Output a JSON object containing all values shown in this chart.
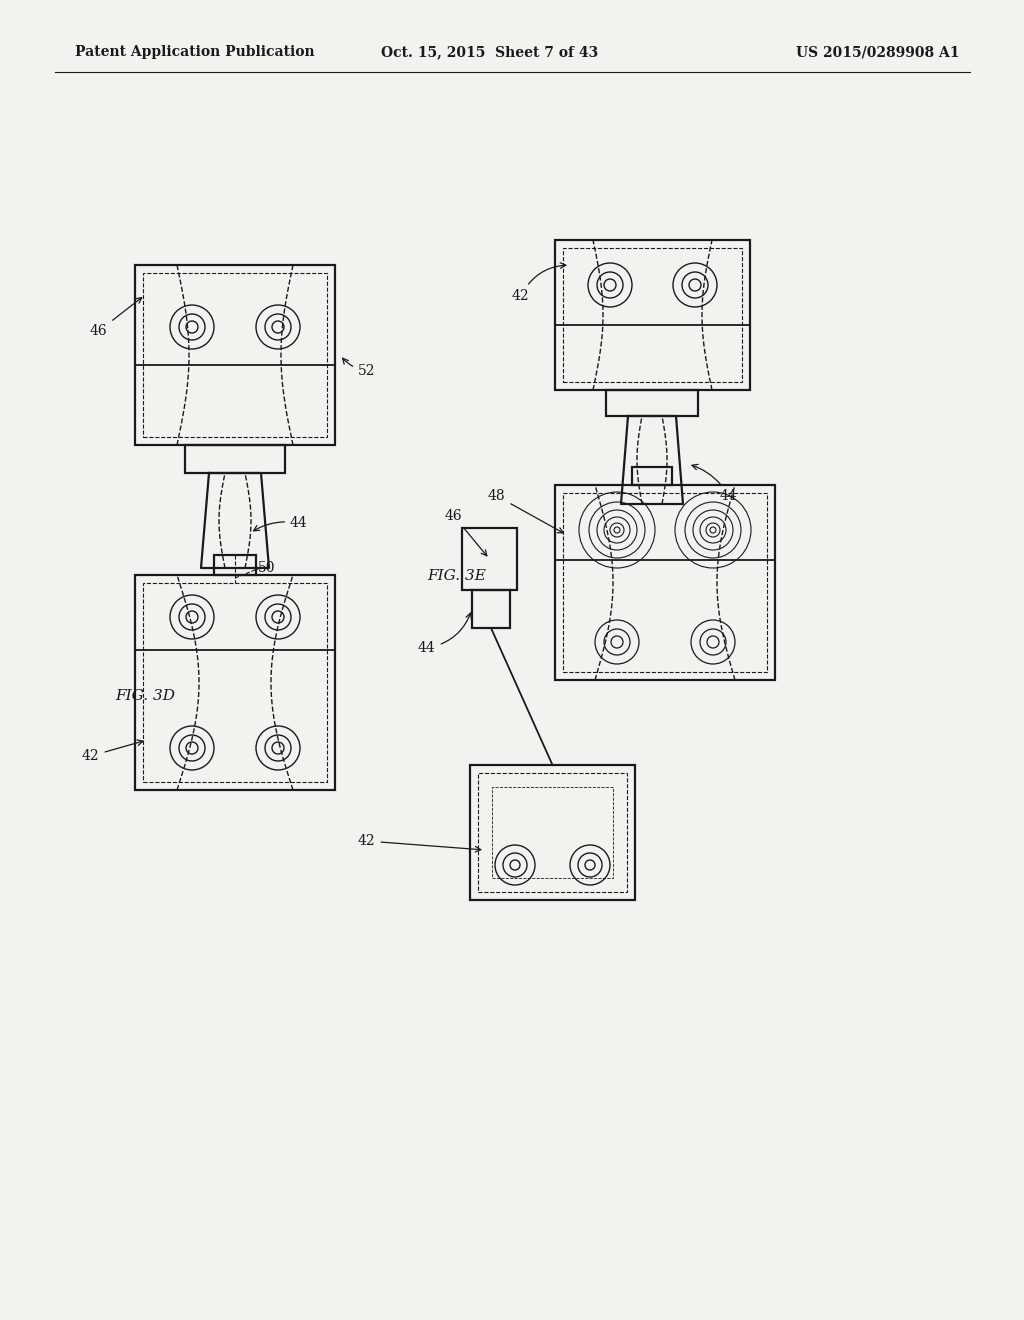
{
  "bg_color": "#f2f2ee",
  "line_color": "#1a1a1a",
  "header_left": "Patent Application Publication",
  "header_center": "Oct. 15, 2015  Sheet 7 of 43",
  "header_right": "US 2015/0289908 A1",
  "fig3d_label": "FIG. 3D",
  "fig3e_label": "FIG. 3E"
}
